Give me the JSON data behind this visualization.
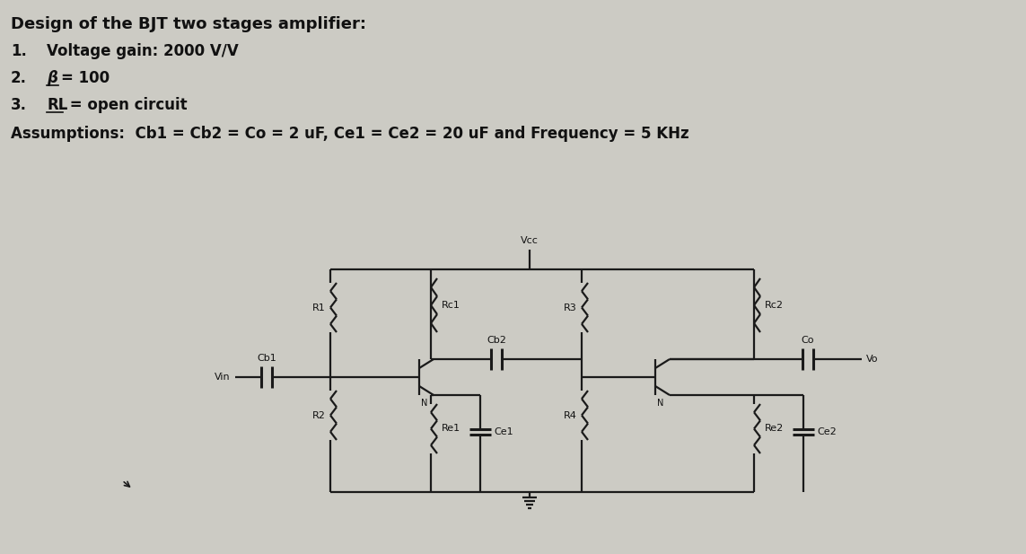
{
  "title_text": "Design of the BJT two stages amplifier:",
  "item1": "Voltage gain: 2000 V/V",
  "item2_beta": "β",
  "item2_rest": "= 100",
  "item3_RL": "RL",
  "item3_rest": " = open circuit",
  "assumption": "Assumptions:  Cb1 = Cb2 = Co = 2 uF, Ce1 = Ce2 = 20 uF and Frequency = 5 KHz",
  "bg_color": "#cccbc4",
  "text_color": "#111111",
  "line_color": "#1a1a1a",
  "font_size_title": 13,
  "font_size_items": 12,
  "font_size_labels": 8
}
